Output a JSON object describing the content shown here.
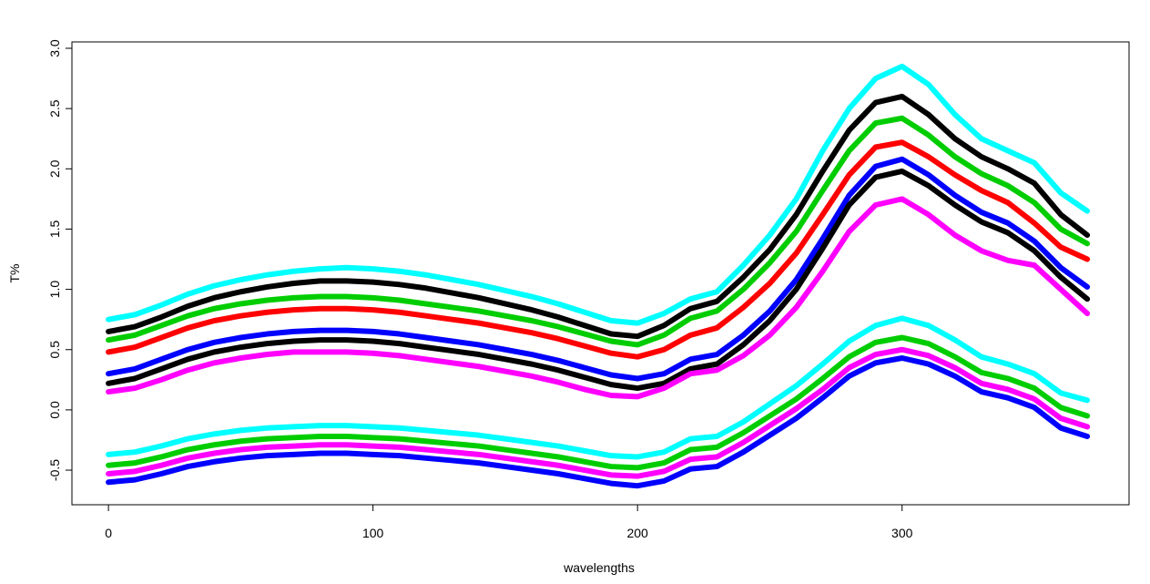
{
  "chart_data": {
    "type": "line",
    "x_label": "wavelengths",
    "y_label": "T%",
    "x": [
      0,
      10,
      20,
      30,
      40,
      50,
      60,
      70,
      80,
      90,
      100,
      110,
      120,
      130,
      140,
      150,
      160,
      170,
      180,
      190,
      200,
      210,
      220,
      230,
      240,
      250,
      260,
      270,
      280,
      290,
      300,
      310,
      320,
      330,
      340,
      350,
      360,
      370
    ],
    "series": [
      {
        "color": "#00ffff",
        "values": [
          0.75,
          0.79,
          0.87,
          0.96,
          1.03,
          1.08,
          1.12,
          1.15,
          1.17,
          1.18,
          1.17,
          1.15,
          1.12,
          1.08,
          1.04,
          0.99,
          0.94,
          0.88,
          0.81,
          0.74,
          0.72,
          0.8,
          0.92,
          0.98,
          1.2,
          1.45,
          1.75,
          2.15,
          2.5,
          2.75,
          2.85,
          2.7,
          2.45,
          2.25,
          2.15,
          2.05,
          1.8,
          1.65
        ]
      },
      {
        "color": "#000000",
        "values": [
          0.65,
          0.69,
          0.77,
          0.86,
          0.93,
          0.98,
          1.02,
          1.05,
          1.07,
          1.07,
          1.06,
          1.04,
          1.01,
          0.97,
          0.93,
          0.88,
          0.83,
          0.77,
          0.7,
          0.63,
          0.61,
          0.7,
          0.84,
          0.9,
          1.1,
          1.33,
          1.62,
          1.98,
          2.32,
          2.55,
          2.6,
          2.45,
          2.25,
          2.1,
          2.0,
          1.88,
          1.62,
          1.45
        ]
      },
      {
        "color": "#00cd00",
        "values": [
          0.58,
          0.62,
          0.7,
          0.78,
          0.84,
          0.88,
          0.91,
          0.93,
          0.94,
          0.94,
          0.93,
          0.91,
          0.88,
          0.85,
          0.82,
          0.78,
          0.74,
          0.69,
          0.63,
          0.57,
          0.54,
          0.62,
          0.76,
          0.82,
          1.0,
          1.22,
          1.48,
          1.82,
          2.15,
          2.38,
          2.42,
          2.28,
          2.1,
          1.96,
          1.86,
          1.72,
          1.5,
          1.38
        ]
      },
      {
        "color": "#ff0000",
        "values": [
          0.48,
          0.52,
          0.6,
          0.68,
          0.74,
          0.78,
          0.81,
          0.83,
          0.84,
          0.84,
          0.83,
          0.81,
          0.78,
          0.75,
          0.72,
          0.68,
          0.64,
          0.59,
          0.53,
          0.47,
          0.44,
          0.5,
          0.62,
          0.68,
          0.85,
          1.05,
          1.3,
          1.62,
          1.95,
          2.18,
          2.22,
          2.1,
          1.95,
          1.82,
          1.72,
          1.55,
          1.35,
          1.25
        ]
      },
      {
        "color": "#0000ff",
        "values": [
          0.3,
          0.34,
          0.42,
          0.5,
          0.56,
          0.6,
          0.63,
          0.65,
          0.66,
          0.66,
          0.65,
          0.63,
          0.6,
          0.57,
          0.54,
          0.5,
          0.46,
          0.41,
          0.35,
          0.29,
          0.26,
          0.3,
          0.42,
          0.46,
          0.62,
          0.82,
          1.08,
          1.42,
          1.78,
          2.02,
          2.08,
          1.95,
          1.78,
          1.64,
          1.55,
          1.4,
          1.18,
          1.02
        ]
      },
      {
        "color": "#000000",
        "values": [
          0.22,
          0.26,
          0.34,
          0.42,
          0.48,
          0.52,
          0.55,
          0.57,
          0.58,
          0.58,
          0.57,
          0.55,
          0.52,
          0.49,
          0.46,
          0.42,
          0.38,
          0.33,
          0.27,
          0.21,
          0.18,
          0.22,
          0.34,
          0.38,
          0.54,
          0.74,
          1.0,
          1.34,
          1.7,
          1.93,
          1.98,
          1.86,
          1.7,
          1.56,
          1.47,
          1.32,
          1.1,
          0.92
        ]
      },
      {
        "color": "#ff00ff",
        "values": [
          0.15,
          0.18,
          0.25,
          0.33,
          0.39,
          0.43,
          0.46,
          0.48,
          0.48,
          0.48,
          0.47,
          0.45,
          0.42,
          0.39,
          0.36,
          0.32,
          0.28,
          0.23,
          0.17,
          0.12,
          0.11,
          0.18,
          0.3,
          0.33,
          0.45,
          0.62,
          0.85,
          1.15,
          1.48,
          1.7,
          1.75,
          1.62,
          1.45,
          1.32,
          1.24,
          1.2,
          1.0,
          0.8
        ]
      },
      {
        "color": "#00ffff",
        "values": [
          -0.37,
          -0.35,
          -0.3,
          -0.24,
          -0.2,
          -0.17,
          -0.15,
          -0.14,
          -0.13,
          -0.13,
          -0.14,
          -0.15,
          -0.17,
          -0.19,
          -0.21,
          -0.24,
          -0.27,
          -0.3,
          -0.34,
          -0.38,
          -0.39,
          -0.35,
          -0.24,
          -0.22,
          -0.1,
          0.05,
          0.2,
          0.38,
          0.57,
          0.7,
          0.76,
          0.7,
          0.58,
          0.44,
          0.38,
          0.3,
          0.14,
          0.08
        ]
      },
      {
        "color": "#00cd00",
        "values": [
          -0.46,
          -0.44,
          -0.39,
          -0.33,
          -0.29,
          -0.26,
          -0.24,
          -0.23,
          -0.22,
          -0.22,
          -0.23,
          -0.24,
          -0.26,
          -0.28,
          -0.3,
          -0.33,
          -0.36,
          -0.39,
          -0.43,
          -0.47,
          -0.48,
          -0.44,
          -0.33,
          -0.31,
          -0.19,
          -0.05,
          0.09,
          0.26,
          0.44,
          0.56,
          0.6,
          0.55,
          0.44,
          0.31,
          0.26,
          0.18,
          0.02,
          -0.05
        ]
      },
      {
        "color": "#ff00ff",
        "values": [
          -0.53,
          -0.51,
          -0.46,
          -0.4,
          -0.36,
          -0.33,
          -0.31,
          -0.3,
          -0.29,
          -0.29,
          -0.3,
          -0.31,
          -0.33,
          -0.35,
          -0.37,
          -0.4,
          -0.43,
          -0.46,
          -0.5,
          -0.54,
          -0.55,
          -0.51,
          -0.41,
          -0.39,
          -0.27,
          -0.13,
          0.01,
          0.17,
          0.35,
          0.46,
          0.5,
          0.45,
          0.35,
          0.22,
          0.17,
          0.09,
          -0.07,
          -0.14
        ]
      },
      {
        "color": "#0000ff",
        "values": [
          -0.6,
          -0.58,
          -0.53,
          -0.47,
          -0.43,
          -0.4,
          -0.38,
          -0.37,
          -0.36,
          -0.36,
          -0.37,
          -0.38,
          -0.4,
          -0.42,
          -0.44,
          -0.47,
          -0.5,
          -0.53,
          -0.57,
          -0.61,
          -0.63,
          -0.59,
          -0.49,
          -0.47,
          -0.35,
          -0.21,
          -0.07,
          0.1,
          0.28,
          0.39,
          0.43,
          0.38,
          0.28,
          0.15,
          0.1,
          0.02,
          -0.15,
          -0.22
        ]
      }
    ],
    "xlim": [
      -13.8,
      385.8
    ],
    "xticks": [
      0,
      100,
      200,
      300
    ],
    "ylim": [
      -0.787,
      3.053
    ],
    "yticks": [
      -0.5,
      {
        "value": 0,
        "label": "0.0"
      },
      0.5,
      {
        "value": 1,
        "label": "1.0"
      },
      1.5,
      {
        "value": 2,
        "label": "2.0"
      },
      2.5,
      {
        "value": 3,
        "label": "3.0"
      }
    ]
  }
}
